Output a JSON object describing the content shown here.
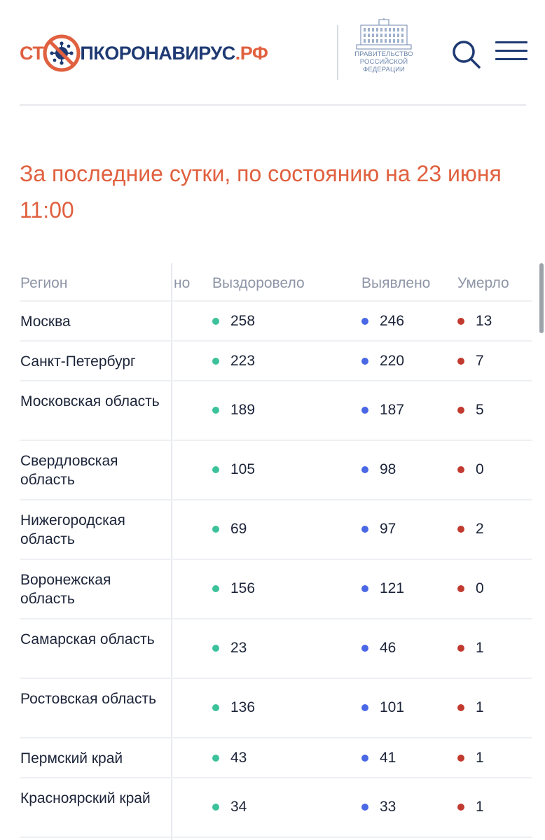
{
  "header": {
    "logo": {
      "part1": "СТ",
      "part2": "ПКОРОНАВИРУС",
      "part3": ".РФ"
    },
    "gov_label": [
      "ПРАВИТЕЛЬСТВО",
      "РОССИЙСКОЙ",
      "ФЕДЕРАЦИИ"
    ],
    "icons": {
      "search": "search-icon",
      "menu": "menu-icon"
    }
  },
  "title": {
    "line1": "За последние сутки, по состоянию на 23 июня",
    "line2": "11:00"
  },
  "table": {
    "columns": {
      "region": "Регион",
      "hidden": "но",
      "recovered": "Выздоровело",
      "detected": "Выявлено",
      "died": "Умерло"
    },
    "rows": [
      {
        "region": "Москва",
        "recovered": "258",
        "detected": "246",
        "died": "13"
      },
      {
        "region": "Санкт-Петербург",
        "recovered": "223",
        "detected": "220",
        "died": "7"
      },
      {
        "region": "Московская область",
        "recovered": "189",
        "detected": "187",
        "died": "5"
      },
      {
        "region": "Свердловская область",
        "recovered": "105",
        "detected": "98",
        "died": "0"
      },
      {
        "region": "Нижегородская область",
        "recovered": "69",
        "detected": "97",
        "died": "2"
      },
      {
        "region": "Воронежская область",
        "recovered": "156",
        "detected": "121",
        "died": "0"
      },
      {
        "region": "Самарская область",
        "recovered": "23",
        "detected": "46",
        "died": "1"
      },
      {
        "region": "Ростовская область",
        "recovered": "136",
        "detected": "101",
        "died": "1"
      },
      {
        "region": "Пермский край",
        "recovered": "43",
        "detected": "41",
        "died": "1"
      },
      {
        "region": "Красноярский край",
        "recovered": "34",
        "detected": "33",
        "died": "1"
      }
    ]
  },
  "colors": {
    "accent": "#e0603f",
    "brand_blue": "#1f3a73",
    "recovered_dot": "#3cc29a",
    "detected_dot": "#4a68e6",
    "died_dot": "#c23a2f"
  }
}
